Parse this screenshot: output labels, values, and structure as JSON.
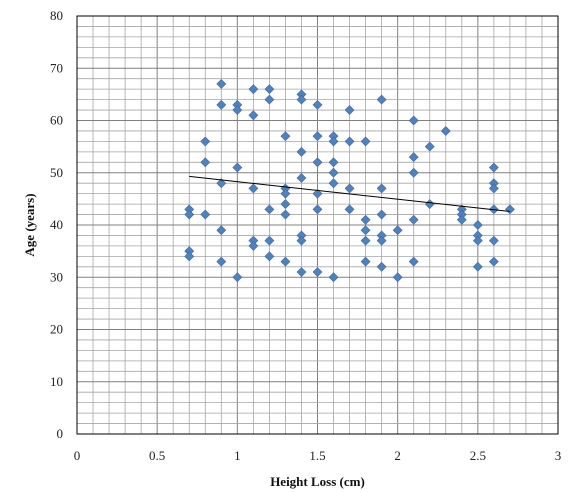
{
  "chart_data": {
    "type": "scatter",
    "title": "",
    "xlabel": "Height Loss (cm)",
    "ylabel": "Age (years)",
    "xlim": [
      0,
      3
    ],
    "ylim": [
      0,
      80
    ],
    "x_ticks": [
      "0",
      "0.5",
      "1",
      "1.5",
      "2",
      "2.5",
      "3"
    ],
    "y_ticks": [
      "0",
      "10",
      "20",
      "30",
      "40",
      "50",
      "60",
      "70",
      "80"
    ],
    "grid": "major and minor",
    "legend": "none",
    "marker_color": "#4F81BD",
    "trendline_color": "#000000",
    "trendline": {
      "x": [
        0.7,
        2.7
      ],
      "y": [
        49.3,
        42.6
      ]
    },
    "points": [
      {
        "x": 0.7,
        "y": 43
      },
      {
        "x": 0.7,
        "y": 42
      },
      {
        "x": 0.7,
        "y": 35
      },
      {
        "x": 0.7,
        "y": 34
      },
      {
        "x": 0.8,
        "y": 56
      },
      {
        "x": 0.8,
        "y": 52
      },
      {
        "x": 0.8,
        "y": 42
      },
      {
        "x": 0.9,
        "y": 67
      },
      {
        "x": 0.9,
        "y": 63
      },
      {
        "x": 0.9,
        "y": 48
      },
      {
        "x": 0.9,
        "y": 39
      },
      {
        "x": 0.9,
        "y": 33
      },
      {
        "x": 1.0,
        "y": 63
      },
      {
        "x": 1.0,
        "y": 62
      },
      {
        "x": 1.0,
        "y": 51
      },
      {
        "x": 1.0,
        "y": 30
      },
      {
        "x": 1.1,
        "y": 66
      },
      {
        "x": 1.1,
        "y": 61
      },
      {
        "x": 1.1,
        "y": 47
      },
      {
        "x": 1.1,
        "y": 37
      },
      {
        "x": 1.1,
        "y": 36
      },
      {
        "x": 1.2,
        "y": 66
      },
      {
        "x": 1.2,
        "y": 64
      },
      {
        "x": 1.2,
        "y": 43
      },
      {
        "x": 1.2,
        "y": 37
      },
      {
        "x": 1.2,
        "y": 34
      },
      {
        "x": 1.3,
        "y": 57
      },
      {
        "x": 1.3,
        "y": 47
      },
      {
        "x": 1.3,
        "y": 46
      },
      {
        "x": 1.3,
        "y": 44
      },
      {
        "x": 1.3,
        "y": 42
      },
      {
        "x": 1.3,
        "y": 33
      },
      {
        "x": 1.4,
        "y": 65
      },
      {
        "x": 1.4,
        "y": 64
      },
      {
        "x": 1.4,
        "y": 54
      },
      {
        "x": 1.4,
        "y": 49
      },
      {
        "x": 1.4,
        "y": 38
      },
      {
        "x": 1.4,
        "y": 37
      },
      {
        "x": 1.4,
        "y": 31
      },
      {
        "x": 1.5,
        "y": 63
      },
      {
        "x": 1.5,
        "y": 57
      },
      {
        "x": 1.5,
        "y": 52
      },
      {
        "x": 1.5,
        "y": 46
      },
      {
        "x": 1.5,
        "y": 43
      },
      {
        "x": 1.5,
        "y": 31
      },
      {
        "x": 1.6,
        "y": 57
      },
      {
        "x": 1.6,
        "y": 56
      },
      {
        "x": 1.6,
        "y": 52
      },
      {
        "x": 1.6,
        "y": 50
      },
      {
        "x": 1.6,
        "y": 48
      },
      {
        "x": 1.6,
        "y": 30
      },
      {
        "x": 1.7,
        "y": 62
      },
      {
        "x": 1.7,
        "y": 56
      },
      {
        "x": 1.7,
        "y": 47
      },
      {
        "x": 1.7,
        "y": 43
      },
      {
        "x": 1.8,
        "y": 56
      },
      {
        "x": 1.8,
        "y": 41
      },
      {
        "x": 1.8,
        "y": 39
      },
      {
        "x": 1.8,
        "y": 37
      },
      {
        "x": 1.8,
        "y": 33
      },
      {
        "x": 1.9,
        "y": 64
      },
      {
        "x": 1.9,
        "y": 47
      },
      {
        "x": 1.9,
        "y": 42
      },
      {
        "x": 1.9,
        "y": 38
      },
      {
        "x": 1.9,
        "y": 37
      },
      {
        "x": 1.9,
        "y": 32
      },
      {
        "x": 2.0,
        "y": 39
      },
      {
        "x": 2.0,
        "y": 30
      },
      {
        "x": 2.1,
        "y": 60
      },
      {
        "x": 2.1,
        "y": 53
      },
      {
        "x": 2.1,
        "y": 50
      },
      {
        "x": 2.1,
        "y": 41
      },
      {
        "x": 2.1,
        "y": 33
      },
      {
        "x": 2.2,
        "y": 55
      },
      {
        "x": 2.2,
        "y": 44
      },
      {
        "x": 2.3,
        "y": 58
      },
      {
        "x": 2.4,
        "y": 43
      },
      {
        "x": 2.4,
        "y": 42
      },
      {
        "x": 2.4,
        "y": 41
      },
      {
        "x": 2.5,
        "y": 40
      },
      {
        "x": 2.5,
        "y": 38
      },
      {
        "x": 2.5,
        "y": 37
      },
      {
        "x": 2.5,
        "y": 32
      },
      {
        "x": 2.6,
        "y": 51
      },
      {
        "x": 2.6,
        "y": 48
      },
      {
        "x": 2.6,
        "y": 47
      },
      {
        "x": 2.6,
        "y": 43
      },
      {
        "x": 2.6,
        "y": 37
      },
      {
        "x": 2.6,
        "y": 33
      },
      {
        "x": 2.7,
        "y": 43
      }
    ]
  }
}
